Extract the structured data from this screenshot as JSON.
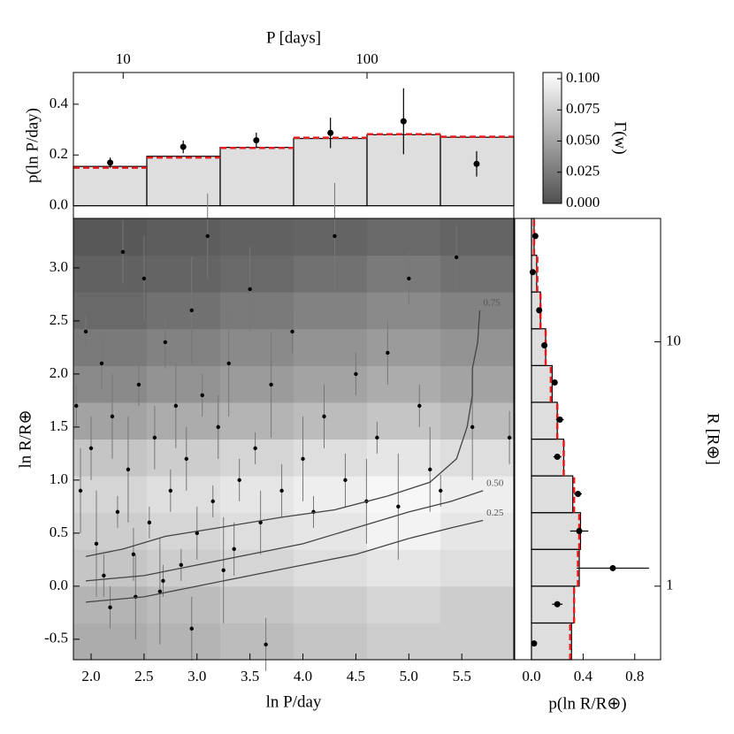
{
  "chart_data": [
    {
      "type": "histogram",
      "ylabel": "p(ln P/day)",
      "bins": [
        1.833,
        2.526,
        3.219,
        3.912,
        4.605,
        5.298,
        5.991
      ],
      "values": [
        0.155,
        0.195,
        0.23,
        0.265,
        0.28,
        0.27
      ],
      "color": "#000000",
      "model": {
        "values": [
          0.15,
          0.19,
          0.228,
          0.268,
          0.282,
          0.272
        ],
        "color": "#e41a1c"
      },
      "points": {
        "x": [
          2.18,
          2.87,
          3.56,
          4.26,
          4.95,
          5.64
        ],
        "y": [
          0.17,
          0.232,
          0.258,
          0.287,
          0.333,
          0.165
        ],
        "yerr": [
          0.02,
          0.025,
          0.03,
          0.06,
          0.13,
          0.05
        ]
      },
      "xlim": [
        1.833,
        5.991
      ],
      "ylim": [
        -0.05,
        0.525
      ],
      "yticks": [
        {
          "value": 0,
          "label": "0.0"
        },
        0.2,
        0.4
      ],
      "top_axis": {
        "label": "P [days]",
        "lim": [
          6.25,
          400
        ],
        "ticks": [
          10,
          100
        ],
        "log": true
      }
    },
    {
      "type": "colorbar",
      "label": "Γ(w)",
      "ylim": [
        0,
        0.105
      ],
      "yticks": [
        {
          "value": 0,
          "label": "0.000"
        },
        {
          "value": 0.025,
          "label": "0.025"
        },
        {
          "value": 0.05,
          "label": "0.050"
        },
        {
          "value": 0.075,
          "label": "0.075"
        },
        {
          "value": 0.1,
          "label": "0.100"
        }
      ]
    },
    {
      "type": "heatmap-scatter",
      "xlabel": "ln P/day",
      "ylabel": "ln R/R⊕",
      "xlim": [
        1.833,
        5.991
      ],
      "ylim": [
        -0.693,
        3.466
      ],
      "xticks": [
        {
          "value": 2,
          "label": "2.0"
        },
        2.5,
        {
          "value": 3,
          "label": "3.0"
        },
        3.5,
        {
          "value": 4,
          "label": "4.0"
        },
        4.5,
        {
          "value": 5,
          "label": "5.0"
        },
        5.5
      ],
      "yticks": [
        -0.5,
        {
          "value": 0,
          "label": "0.0"
        },
        0.5,
        {
          "value": 1,
          "label": "1.0"
        },
        1.5,
        {
          "value": 2,
          "label": "2.0"
        },
        2.5,
        {
          "value": 3,
          "label": "3.0"
        }
      ],
      "xbins": [
        1.833,
        2.526,
        3.219,
        3.912,
        4.605,
        5.298,
        5.991
      ],
      "ybins": [
        -0.693,
        -0.347,
        0,
        0.347,
        0.693,
        1.04,
        1.386,
        1.733,
        2.079,
        2.426,
        2.773,
        3.119,
        3.466
      ],
      "cells": [
        [
          0.055,
          0.06,
          0.065,
          0.07,
          0.075,
          0.075
        ],
        [
          0.06,
          0.065,
          0.07,
          0.075,
          0.08,
          0.075
        ],
        [
          0.07,
          0.075,
          0.08,
          0.085,
          0.09,
          0.085
        ],
        [
          0.075,
          0.08,
          0.085,
          0.09,
          0.098,
          0.09
        ],
        [
          0.08,
          0.085,
          0.09,
          0.095,
          0.1,
          0.095
        ],
        [
          0.07,
          0.075,
          0.08,
          0.085,
          0.09,
          0.085
        ],
        [
          0.05,
          0.055,
          0.06,
          0.065,
          0.07,
          0.065
        ],
        [
          0.035,
          0.04,
          0.045,
          0.05,
          0.055,
          0.05
        ],
        [
          0.025,
          0.03,
          0.035,
          0.04,
          0.045,
          0.04
        ],
        [
          0.015,
          0.02,
          0.025,
          0.03,
          0.035,
          0.03
        ],
        [
          0.01,
          0.012,
          0.015,
          0.02,
          0.025,
          0.02
        ],
        [
          0.005,
          0.008,
          0.01,
          0.012,
          0.015,
          0.012
        ]
      ],
      "points": {
        "x": [
          1.86,
          1.9,
          1.95,
          2.0,
          2.05,
          2.1,
          2.12,
          2.2,
          2.25,
          2.3,
          2.35,
          2.4,
          2.45,
          2.5,
          2.55,
          2.6,
          2.65,
          2.7,
          2.75,
          2.8,
          2.85,
          2.9,
          2.95,
          3.0,
          3.05,
          3.1,
          3.15,
          3.2,
          3.3,
          3.35,
          3.4,
          3.5,
          3.55,
          3.6,
          3.7,
          3.8,
          3.9,
          4.0,
          4.1,
          4.2,
          4.3,
          4.4,
          4.5,
          4.6,
          4.7,
          4.8,
          4.9,
          5.0,
          5.1,
          5.2,
          5.3,
          5.45,
          5.6,
          5.95,
          2.18,
          2.42,
          2.68,
          2.95,
          3.25,
          3.65
        ],
        "y": [
          1.7,
          0.9,
          2.4,
          1.3,
          0.4,
          2.1,
          0.1,
          1.6,
          0.7,
          3.15,
          1.1,
          0.3,
          1.9,
          2.9,
          0.6,
          1.4,
          -0.05,
          2.3,
          0.9,
          1.7,
          0.2,
          1.2,
          2.6,
          0.5,
          1.8,
          3.3,
          0.8,
          1.5,
          2.1,
          0.35,
          1.0,
          2.8,
          1.3,
          0.6,
          1.9,
          0.9,
          2.4,
          1.2,
          0.7,
          1.6,
          3.3,
          1.0,
          2.0,
          0.8,
          1.4,
          2.2,
          0.75,
          2.9,
          1.7,
          1.1,
          0.9,
          3.1,
          1.5,
          1.4,
          -0.2,
          -0.1,
          0.05,
          -0.4,
          0.15,
          -0.55
        ],
        "yerr": [
          0.2,
          0.4,
          0.15,
          0.3,
          0.5,
          0.25,
          0.2,
          0.4,
          0.15,
          0.3,
          0.5,
          0.25,
          0.2,
          0.4,
          0.15,
          0.3,
          0.5,
          0.25,
          0.2,
          0.4,
          0.15,
          0.3,
          0.5,
          0.25,
          0.2,
          0.4,
          0.15,
          0.3,
          0.5,
          0.25,
          0.2,
          0.4,
          0.15,
          0.3,
          0.5,
          0.25,
          0.2,
          0.4,
          0.15,
          0.3,
          0.5,
          0.25,
          0.2,
          0.4,
          0.15,
          0.3,
          0.5,
          0.25,
          0.2,
          0.4,
          0.15,
          0.3,
          0.5,
          0.25,
          0.2,
          0.4,
          0.15,
          0.3,
          0.5,
          0.25
        ]
      },
      "contours": [
        {
          "label": "0.75",
          "x": [
            1.95,
            2.3,
            2.7,
            3.2,
            3.8,
            4.3,
            4.8,
            5.2,
            5.45,
            5.55,
            5.6,
            5.6,
            5.65,
            5.67
          ],
          "y": [
            0.28,
            0.35,
            0.47,
            0.55,
            0.65,
            0.72,
            0.85,
            0.98,
            1.2,
            1.5,
            1.8,
            2.05,
            2.3,
            2.6
          ]
        },
        {
          "label": "0.50",
          "x": [
            1.95,
            2.5,
            3.0,
            3.5,
            4.0,
            4.5,
            5.0,
            5.4,
            5.7
          ],
          "y": [
            0.05,
            0.1,
            0.2,
            0.3,
            0.4,
            0.55,
            0.7,
            0.8,
            0.9
          ]
        },
        {
          "label": "0.25",
          "x": [
            1.95,
            2.5,
            3.0,
            3.5,
            4.0,
            4.5,
            5.0,
            5.4,
            5.7
          ],
          "y": [
            -0.15,
            -0.1,
            0.0,
            0.1,
            0.2,
            0.3,
            0.45,
            0.55,
            0.62
          ]
        }
      ]
    },
    {
      "type": "histogram-horizontal",
      "xlabel": "p(ln R/R⊕)",
      "xlim": [
        -0.13,
        1.0
      ],
      "ylim": [
        -0.693,
        3.466
      ],
      "xticks": [
        {
          "value": 0,
          "label": "0.0"
        },
        0.4,
        0.8
      ],
      "bins": [
        -0.693,
        -0.347,
        0,
        0.347,
        0.693,
        1.04,
        1.386,
        1.733,
        2.079,
        2.426,
        2.773,
        3.119,
        3.466
      ],
      "values": [
        0.31,
        0.33,
        0.37,
        0.38,
        0.32,
        0.25,
        0.2,
        0.16,
        0.11,
        0.07,
        0.04,
        0.02
      ],
      "color": "#000000",
      "model": {
        "values": [
          0.3,
          0.33,
          0.36,
          0.37,
          0.33,
          0.25,
          0.2,
          0.15,
          0.11,
          0.07,
          0.045,
          0.02
        ],
        "color": "#e41a1c"
      },
      "points": {
        "y": [
          -0.54,
          -0.17,
          0.17,
          0.52,
          0.87,
          1.22,
          1.57,
          1.92,
          2.27,
          2.6,
          2.96,
          3.3
        ],
        "x": [
          0.02,
          0.2,
          0.63,
          0.37,
          0.36,
          0.2,
          0.22,
          0.18,
          0.1,
          0.06,
          0.01,
          0.03
        ],
        "xerr": [
          0.01,
          0.04,
          0.28,
          0.07,
          0.03,
          0.03,
          0.03,
          0.02,
          0.02,
          0.01,
          0.01,
          0.01
        ]
      },
      "y2": {
        "label": "R [R⊕]",
        "lim": [
          0.5,
          32
        ],
        "ticks": [
          1,
          10
        ],
        "log": true
      }
    }
  ]
}
